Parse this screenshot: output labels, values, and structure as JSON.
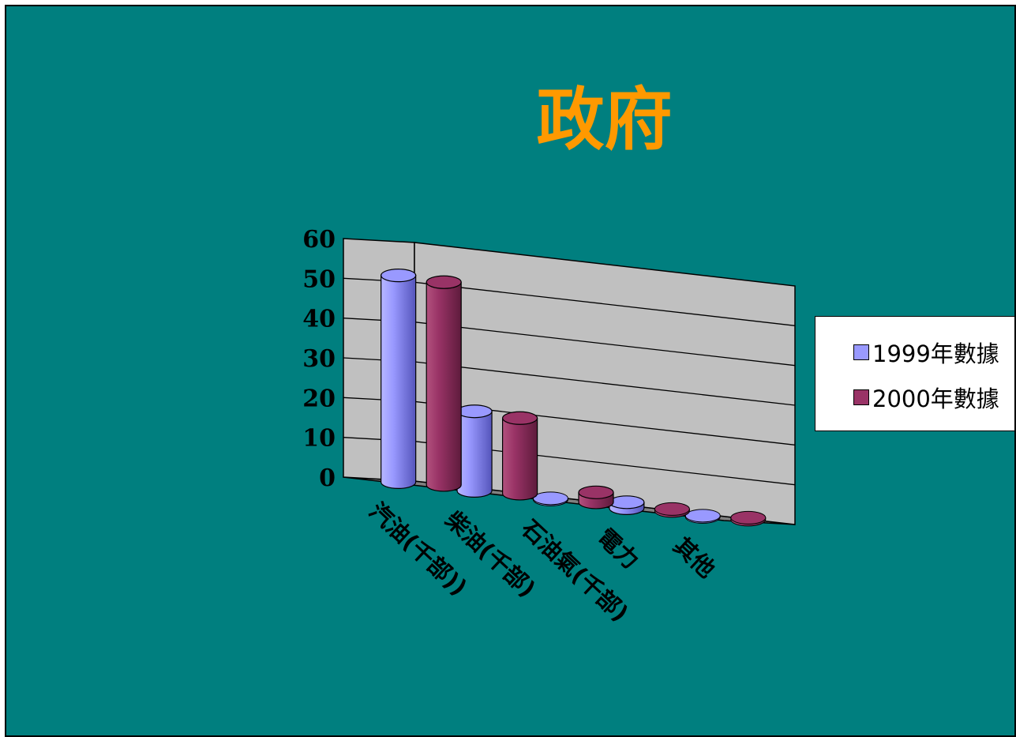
{
  "slide": {
    "background": "#007f7f",
    "title_color": "#ff9900"
  },
  "chart_data": {
    "type": "bar",
    "style": "3d-cylinder",
    "title": "政府",
    "categories": [
      "汽油(千部))",
      "柴油(千部)",
      "石油氣(千部)",
      "電力",
      "其他"
    ],
    "series": [
      {
        "name": "1999年數據",
        "color": "#9999ff",
        "values": [
          52,
          20,
          0.3,
          1.5,
          0.3
        ]
      },
      {
        "name": "2000年數據",
        "color": "#993366",
        "values": [
          51,
          19,
          2.5,
          0.5,
          0.5
        ]
      }
    ],
    "ylim": [
      0,
      60
    ],
    "yticks": [
      "0",
      "10",
      "20",
      "30",
      "40",
      "50",
      "60"
    ],
    "grid": true,
    "legend": "right"
  }
}
